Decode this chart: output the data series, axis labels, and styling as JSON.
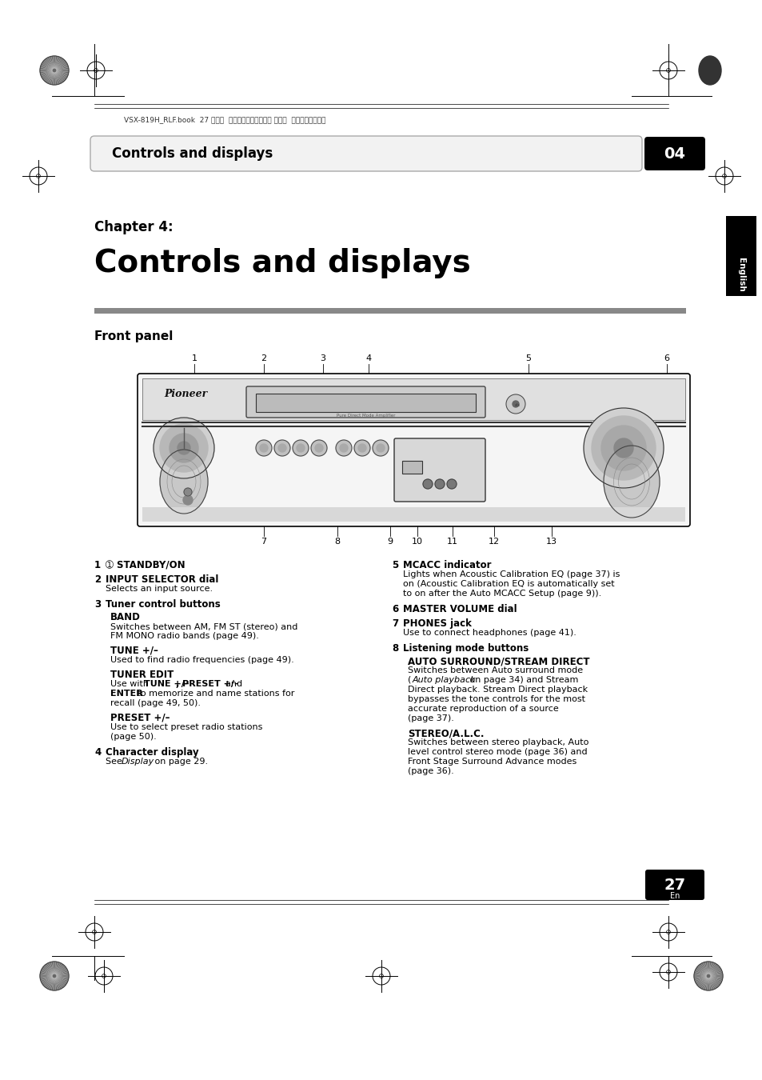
{
  "bg_color": "#ffffff",
  "page_header_text": "VSX-819H_RLF.book  27 ページ  ２００９年１月２０日 火曜日  午前１０時３６分",
  "header_label": "Controls and displays",
  "header_number": "04",
  "chapter_label": "Chapter 4:",
  "chapter_title": "Controls and displays",
  "section_title": "Front panel",
  "sidebar_text": "English",
  "page_number": "27",
  "page_number_sub": "En"
}
